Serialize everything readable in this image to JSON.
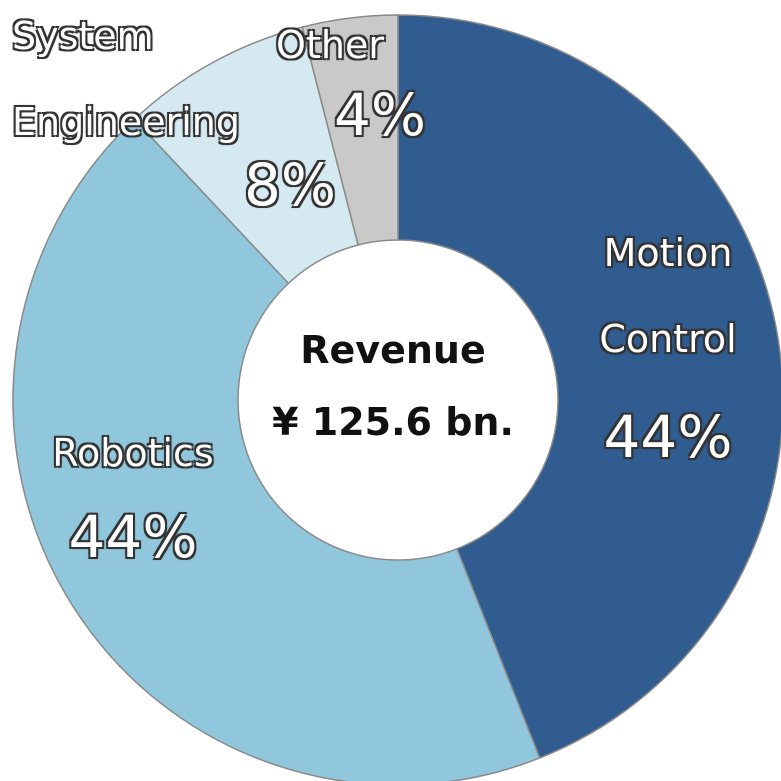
{
  "chart_data": {
    "type": "donut",
    "categories": [
      "Motion Control",
      "Robotics",
      "System Engineering",
      "Other"
    ],
    "values": [
      44,
      44,
      8,
      4
    ],
    "value_labels": [
      "44%",
      "44%",
      "8%",
      "4%"
    ],
    "colors": [
      "#305c90",
      "#90c7dc",
      "#d5e9f1",
      "#c9c9c9"
    ],
    "center_text": [
      "Revenue",
      "¥ 125.6 bn."
    ]
  }
}
